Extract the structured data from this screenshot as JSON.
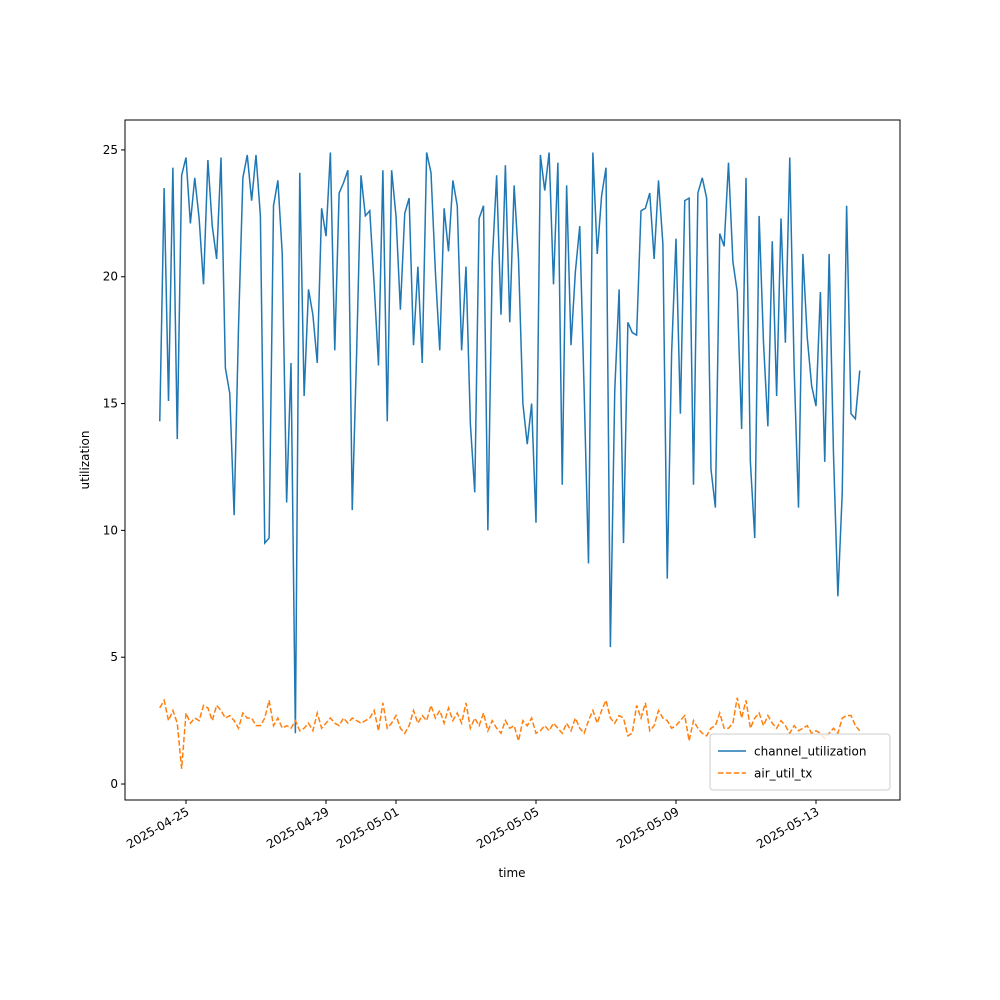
{
  "chart_data": {
    "type": "line",
    "xlabel": "time",
    "ylabel": "utilization",
    "x": [
      "2025-04-24T06:00",
      "2025-04-24T09:00",
      "2025-04-24T12:00",
      "2025-04-24T15:00",
      "2025-04-24T18:00",
      "2025-04-24T21:00",
      "2025-04-25T00:00",
      "2025-04-25T03:00",
      "2025-04-25T06:00",
      "2025-04-25T09:00",
      "2025-04-25T12:00",
      "2025-04-25T15:00",
      "2025-04-25T18:00",
      "2025-04-25T21:00",
      "2025-04-26T00:00",
      "2025-04-26T03:00",
      "2025-04-26T06:00",
      "2025-04-26T09:00",
      "2025-04-26T12:00",
      "2025-04-26T15:00",
      "2025-04-26T18:00",
      "2025-04-26T21:00",
      "2025-04-27T00:00",
      "2025-04-27T03:00",
      "2025-04-27T06:00",
      "2025-04-27T09:00",
      "2025-04-27T12:00",
      "2025-04-27T15:00",
      "2025-04-27T18:00",
      "2025-04-27T21:00",
      "2025-04-28T00:00",
      "2025-04-28T03:00",
      "2025-04-28T06:00",
      "2025-04-28T09:00",
      "2025-04-28T12:00",
      "2025-04-28T15:00",
      "2025-04-28T18:00",
      "2025-04-28T21:00",
      "2025-04-29T00:00",
      "2025-04-29T03:00",
      "2025-04-29T06:00",
      "2025-04-29T09:00",
      "2025-04-29T12:00",
      "2025-04-29T15:00",
      "2025-04-29T18:00",
      "2025-04-29T21:00",
      "2025-04-30T00:00",
      "2025-04-30T03:00",
      "2025-04-30T06:00",
      "2025-04-30T09:00",
      "2025-04-30T12:00",
      "2025-04-30T15:00",
      "2025-04-30T18:00",
      "2025-04-30T21:00",
      "2025-05-01T00:00",
      "2025-05-01T03:00",
      "2025-05-01T06:00",
      "2025-05-01T09:00",
      "2025-05-01T12:00",
      "2025-05-01T15:00",
      "2025-05-01T18:00",
      "2025-05-01T21:00",
      "2025-05-02T00:00",
      "2025-05-02T03:00",
      "2025-05-02T06:00",
      "2025-05-02T09:00",
      "2025-05-02T12:00",
      "2025-05-02T15:00",
      "2025-05-02T18:00",
      "2025-05-02T21:00",
      "2025-05-03T00:00",
      "2025-05-03T03:00",
      "2025-05-03T06:00",
      "2025-05-03T09:00",
      "2025-05-03T12:00",
      "2025-05-03T15:00",
      "2025-05-03T18:00",
      "2025-05-03T21:00",
      "2025-05-04T00:00",
      "2025-05-04T03:00",
      "2025-05-04T06:00",
      "2025-05-04T09:00",
      "2025-05-04T12:00",
      "2025-05-04T15:00",
      "2025-05-04T18:00",
      "2025-05-04T21:00",
      "2025-05-05T00:00",
      "2025-05-05T03:00",
      "2025-05-05T06:00",
      "2025-05-05T09:00",
      "2025-05-05T12:00",
      "2025-05-05T15:00",
      "2025-05-05T18:00",
      "2025-05-05T21:00",
      "2025-05-06T00:00",
      "2025-05-06T03:00",
      "2025-05-06T06:00",
      "2025-05-06T09:00",
      "2025-05-06T12:00",
      "2025-05-06T15:00",
      "2025-05-06T18:00",
      "2025-05-06T21:00",
      "2025-05-07T00:00",
      "2025-05-07T03:00",
      "2025-05-07T06:00",
      "2025-05-07T09:00",
      "2025-05-07T12:00",
      "2025-05-07T15:00",
      "2025-05-07T18:00",
      "2025-05-07T21:00",
      "2025-05-08T00:00",
      "2025-05-08T03:00",
      "2025-05-08T06:00",
      "2025-05-08T09:00",
      "2025-05-08T12:00",
      "2025-05-08T15:00",
      "2025-05-08T18:00",
      "2025-05-08T21:00",
      "2025-05-09T00:00",
      "2025-05-09T03:00",
      "2025-05-09T06:00",
      "2025-05-09T09:00",
      "2025-05-09T12:00",
      "2025-05-09T15:00",
      "2025-05-09T18:00",
      "2025-05-09T21:00",
      "2025-05-10T00:00",
      "2025-05-10T03:00",
      "2025-05-10T06:00",
      "2025-05-10T09:00",
      "2025-05-10T12:00",
      "2025-05-10T15:00",
      "2025-05-10T18:00",
      "2025-05-10T21:00",
      "2025-05-11T00:00",
      "2025-05-11T03:00",
      "2025-05-11T06:00",
      "2025-05-11T09:00",
      "2025-05-11T12:00",
      "2025-05-11T15:00",
      "2025-05-11T18:00",
      "2025-05-11T21:00",
      "2025-05-12T00:00",
      "2025-05-12T03:00",
      "2025-05-12T06:00",
      "2025-05-12T09:00",
      "2025-05-12T12:00",
      "2025-05-12T15:00",
      "2025-05-12T18:00",
      "2025-05-12T21:00",
      "2025-05-13T00:00",
      "2025-05-13T03:00",
      "2025-05-13T06:00",
      "2025-05-13T09:00",
      "2025-05-13T12:00",
      "2025-05-13T15:00",
      "2025-05-13T18:00",
      "2025-05-13T21:00",
      "2025-05-14T00:00",
      "2025-05-14T03:00",
      "2025-05-14T06:00"
    ],
    "series": [
      {
        "name": "channel_utilization",
        "color": "#1f77b4",
        "dash": "solid",
        "values": [
          14.3,
          23.5,
          15.1,
          24.3,
          13.6,
          24.0,
          24.7,
          22.1,
          23.9,
          22.3,
          19.7,
          24.6,
          22.0,
          20.7,
          24.7,
          16.4,
          15.4,
          10.6,
          18.0,
          23.9,
          24.8,
          23.0,
          24.8,
          22.4,
          9.5,
          9.7,
          22.8,
          23.8,
          20.9,
          11.1,
          16.6,
          2.0,
          24.1,
          15.3,
          19.5,
          18.5,
          16.6,
          22.7,
          21.6,
          24.9,
          17.1,
          23.3,
          23.7,
          24.2,
          10.8,
          17.0,
          24.0,
          22.4,
          22.6,
          19.7,
          16.5,
          24.2,
          14.3,
          24.2,
          22.4,
          18.7,
          22.5,
          23.1,
          17.3,
          20.4,
          16.6,
          24.9,
          24.1,
          20.2,
          17.1,
          22.7,
          21.0,
          23.8,
          22.8,
          17.1,
          20.4,
          14.2,
          11.5,
          22.3,
          22.8,
          10.0,
          20.6,
          24.0,
          18.5,
          24.4,
          18.2,
          23.6,
          20.7,
          15.0,
          13.4,
          15.0,
          10.3,
          24.8,
          23.4,
          24.9,
          19.7,
          24.5,
          11.8,
          23.6,
          17.3,
          20.2,
          22.0,
          15.5,
          8.7,
          24.9,
          20.9,
          23.2,
          24.3,
          5.4,
          15.5,
          19.5,
          9.5,
          18.2,
          17.8,
          17.7,
          22.6,
          22.7,
          23.3,
          20.7,
          23.8,
          21.3,
          8.1,
          17.0,
          21.5,
          14.6,
          23.0,
          23.1,
          11.8,
          23.3,
          23.9,
          23.1,
          12.4,
          10.9,
          21.7,
          21.2,
          24.5,
          20.6,
          19.4,
          14.0,
          23.9,
          12.7,
          9.7,
          22.4,
          17.4,
          14.1,
          21.4,
          15.3,
          22.3,
          17.4,
          24.7,
          16.4,
          10.9,
          20.9,
          17.6,
          15.7,
          14.9,
          19.4,
          12.7,
          20.9,
          13.0,
          7.4,
          11.5,
          22.8,
          14.6,
          14.4,
          16.3
        ]
      },
      {
        "name": "air_util_tx",
        "color": "#ff7f0e",
        "dash": "dashed",
        "values": [
          3.0,
          3.3,
          2.5,
          2.9,
          2.4,
          0.6,
          2.8,
          2.4,
          2.6,
          2.5,
          3.1,
          3.0,
          2.5,
          3.1,
          2.9,
          2.6,
          2.7,
          2.5,
          2.2,
          2.8,
          2.6,
          2.6,
          2.3,
          2.3,
          2.6,
          3.3,
          2.3,
          2.6,
          2.2,
          2.3,
          2.2,
          2.5,
          2.1,
          2.2,
          2.4,
          2.1,
          2.8,
          2.2,
          2.4,
          2.6,
          2.4,
          2.3,
          2.6,
          2.4,
          2.6,
          2.5,
          2.4,
          2.5,
          2.6,
          2.9,
          2.1,
          3.2,
          2.2,
          2.4,
          2.7,
          2.2,
          2.0,
          2.3,
          2.9,
          2.4,
          2.7,
          2.5,
          3.1,
          2.6,
          2.9,
          2.4,
          3.0,
          2.5,
          2.8,
          2.4,
          3.2,
          2.2,
          2.6,
          2.3,
          2.8,
          2.1,
          2.5,
          2.2,
          2.0,
          2.5,
          2.2,
          2.3,
          1.7,
          2.5,
          2.3,
          2.6,
          2.0,
          2.1,
          2.3,
          2.1,
          2.4,
          2.2,
          2.0,
          2.4,
          2.1,
          2.6,
          2.2,
          2.0,
          2.5,
          2.9,
          2.4,
          2.9,
          3.3,
          2.6,
          2.4,
          2.7,
          2.6,
          1.9,
          2.0,
          3.1,
          2.6,
          3.2,
          2.1,
          2.3,
          2.9,
          2.6,
          2.5,
          2.2,
          2.3,
          2.5,
          2.7,
          1.7,
          2.5,
          2.2,
          2.0,
          1.9,
          2.2,
          2.3,
          2.8,
          2.2,
          2.2,
          2.4,
          3.4,
          2.6,
          3.3,
          2.2,
          2.6,
          2.8,
          2.3,
          2.7,
          2.4,
          2.2,
          2.5,
          2.3,
          2.0,
          2.3,
          2.1,
          2.2,
          2.3,
          2.0,
          2.1,
          2.0,
          1.8,
          2.0,
          2.2,
          2.0,
          2.6,
          2.7,
          2.7,
          2.3,
          2.1
        ]
      }
    ],
    "xlim": [
      "2025-04-23T06:10",
      "2025-05-15T09:36"
    ],
    "xticks": [
      "2025-04-25",
      "2025-04-29",
      "2025-05-01",
      "2025-05-05",
      "2025-05-09",
      "2025-05-13"
    ],
    "ylim": [
      -0.63,
      26.18
    ],
    "yticks": [
      0,
      5,
      10,
      15,
      20,
      25
    ],
    "legend": "lower right",
    "grid": false
  }
}
